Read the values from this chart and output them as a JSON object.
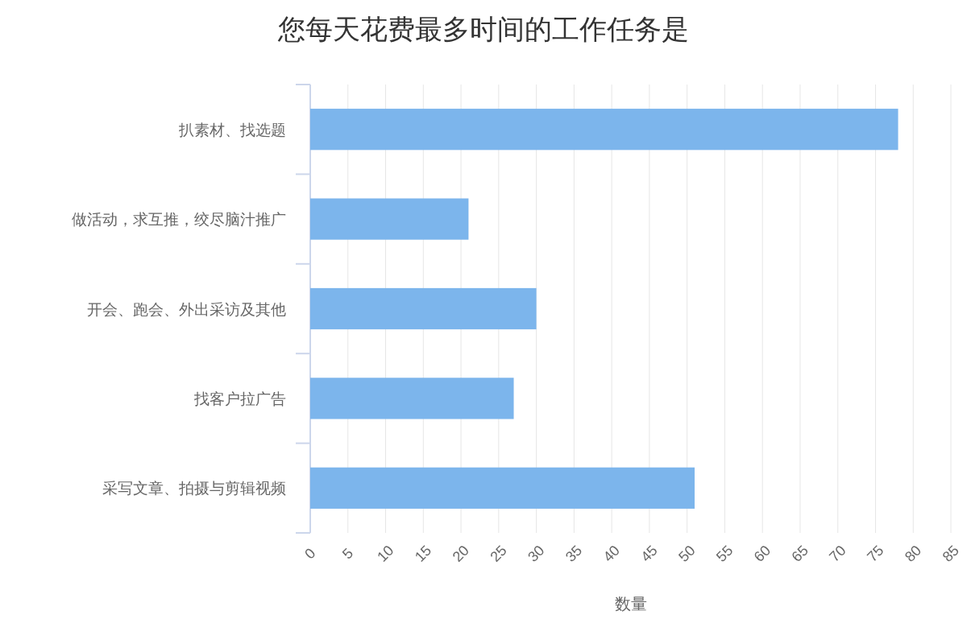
{
  "chart_data": {
    "type": "bar",
    "orientation": "horizontal",
    "title": "您每天花费最多时间的工作任务是",
    "xlabel": "数量",
    "categories": [
      "扒素材、找选题",
      "做活动，求互推，绞尽脑汁推广",
      "开会、跑会、外出采访及其他",
      "找客户拉广告",
      "采写文章、拍摄与剪辑视频"
    ],
    "values": [
      78,
      21,
      30,
      27,
      51
    ],
    "color": "#7cb5ec",
    "xlim": [
      0,
      85
    ],
    "xticks": [
      0,
      5,
      10,
      15,
      20,
      25,
      30,
      35,
      40,
      45,
      50,
      55,
      60,
      65,
      70,
      75,
      80,
      85
    ],
    "grid": "x"
  }
}
